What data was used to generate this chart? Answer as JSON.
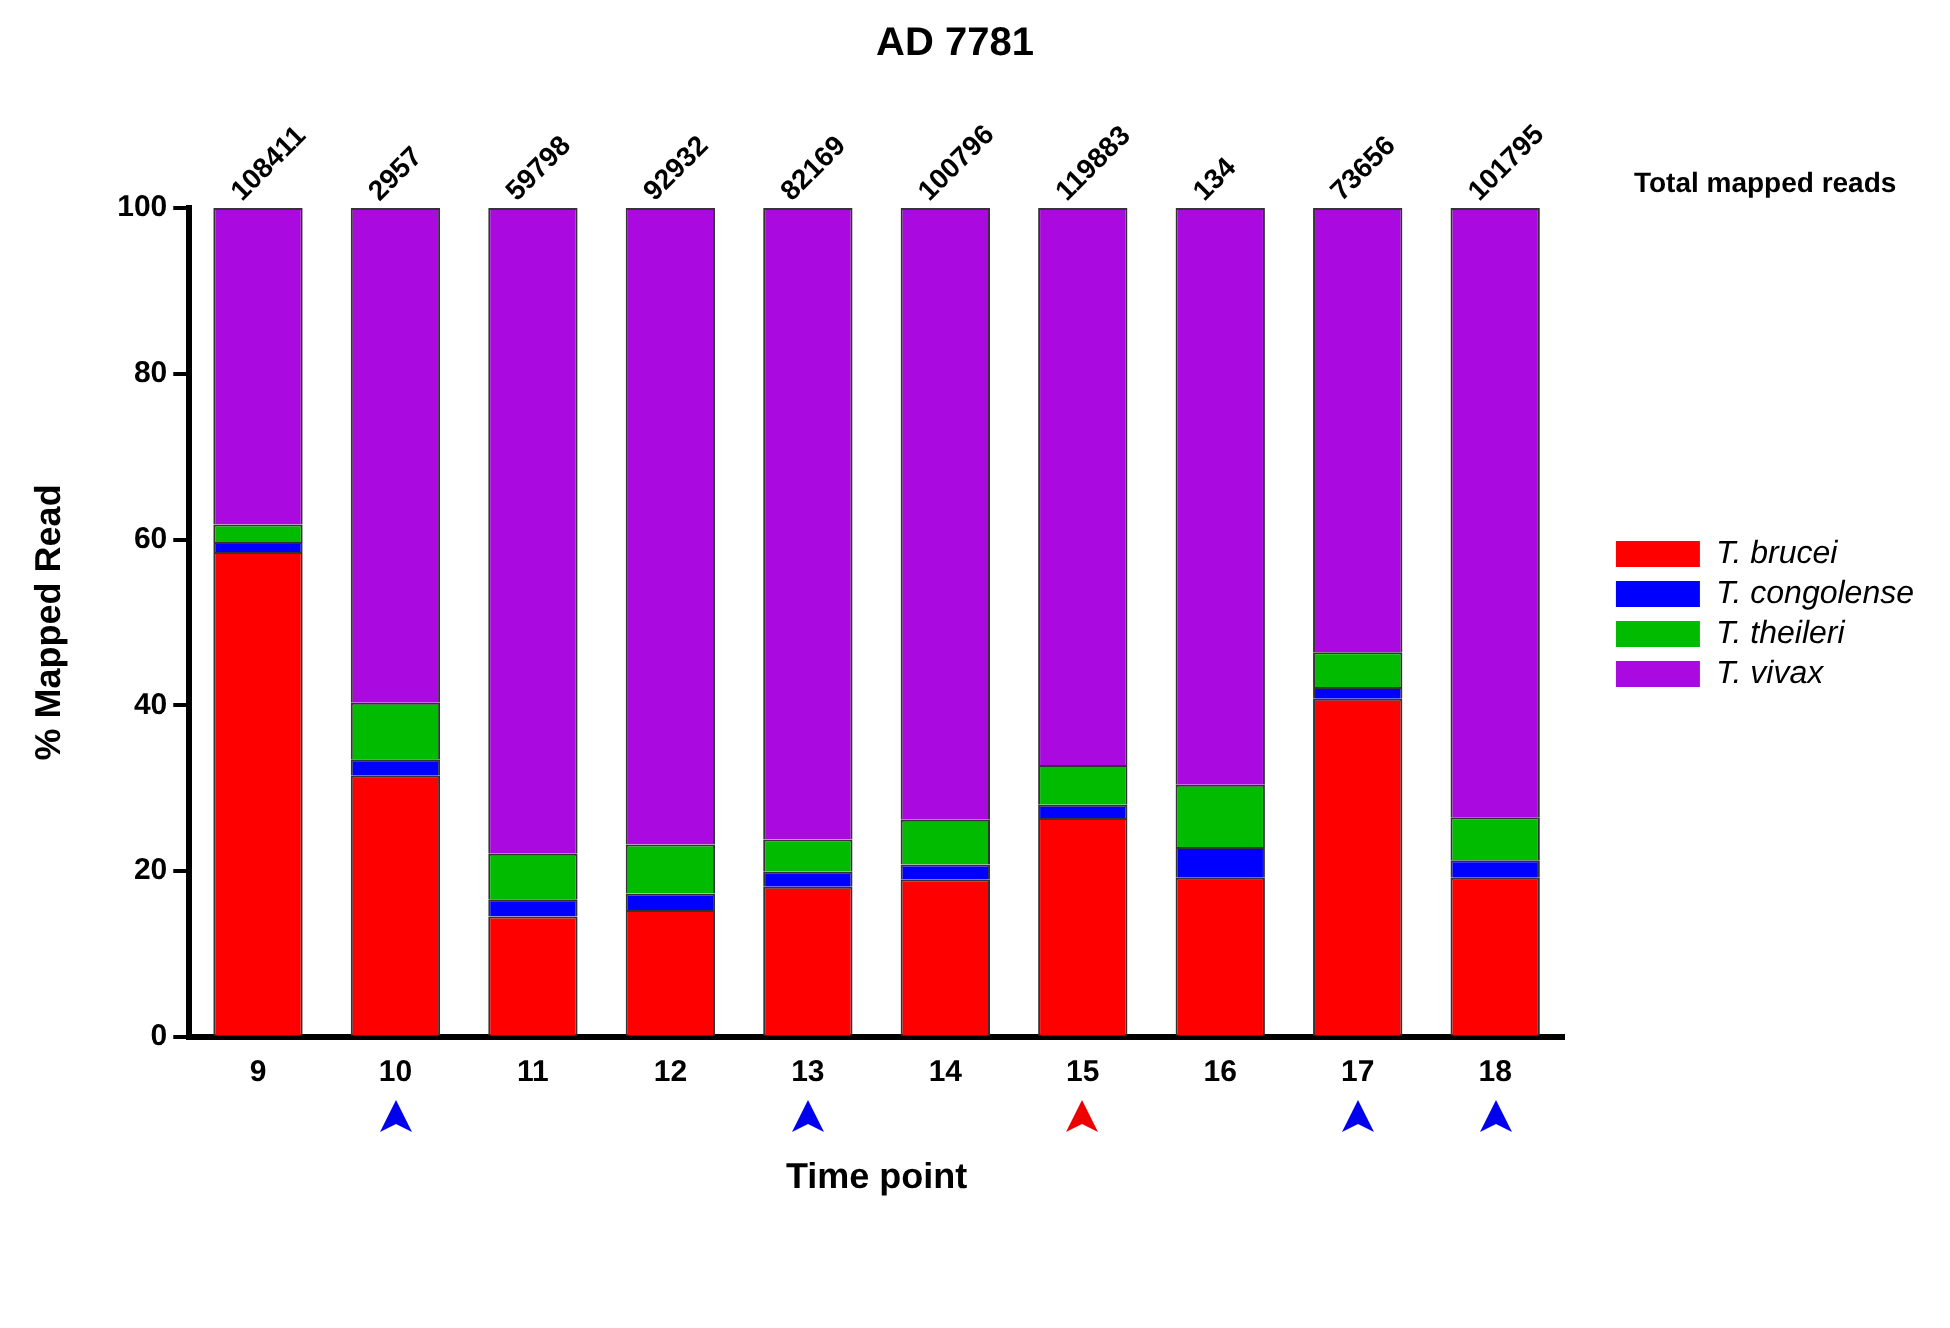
{
  "chart_data": {
    "type": "bar",
    "title": "AD 7781",
    "xlabel": "Time point",
    "ylabel": "% Mapped Read",
    "categories": [
      "9",
      "10",
      "11",
      "12",
      "13",
      "14",
      "15",
      "16",
      "17",
      "18"
    ],
    "stacked": true,
    "series": [
      {
        "name": "T. brucei",
        "color": "#ff0000",
        "values": [
          58.5,
          31.5,
          14.5,
          15.3,
          18.1,
          19.0,
          26.4,
          19.2,
          40.8,
          19.2
        ]
      },
      {
        "name": "T. congolense",
        "color": "#0000ff",
        "values": [
          1.2,
          2.0,
          2.1,
          2.0,
          1.8,
          1.8,
          1.6,
          3.7,
          1.4,
          2.1
        ]
      },
      {
        "name": "T. theileri",
        "color": "#00bb00",
        "values": [
          2.1,
          6.8,
          5.5,
          5.9,
          3.9,
          5.4,
          4.8,
          7.5,
          4.2,
          5.2
        ]
      },
      {
        "name": "T. vivax",
        "color": "#aa0ae0",
        "values": [
          38.2,
          59.7,
          77.9,
          76.8,
          76.2,
          73.8,
          67.2,
          69.6,
          53.6,
          73.5
        ]
      }
    ],
    "annotations": [
      "Total mapped reads",
      {
        "text": "108411",
        "x": "9",
        "y": 100
      },
      {
        "text": "2957",
        "x": "10",
        "y": 100
      },
      {
        "text": "59798",
        "x": "11",
        "y": 100
      },
      {
        "text": "92932",
        "x": "12",
        "y": 100
      },
      {
        "text": "82169",
        "x": "13",
        "y": 100
      },
      {
        "text": "100796",
        "x": "14",
        "y": 100
      },
      {
        "text": "119883",
        "x": "15",
        "y": 100
      },
      {
        "text": "134",
        "x": "16",
        "y": 100
      },
      {
        "text": "73656",
        "x": "17",
        "y": 100
      },
      {
        "text": "101795",
        "x": "18",
        "y": 100
      }
    ],
    "ylim": [
      0,
      100
    ],
    "yticks": [
      0,
      20,
      40,
      60,
      80,
      100
    ],
    "grid": false,
    "legend": "right"
  }
}
